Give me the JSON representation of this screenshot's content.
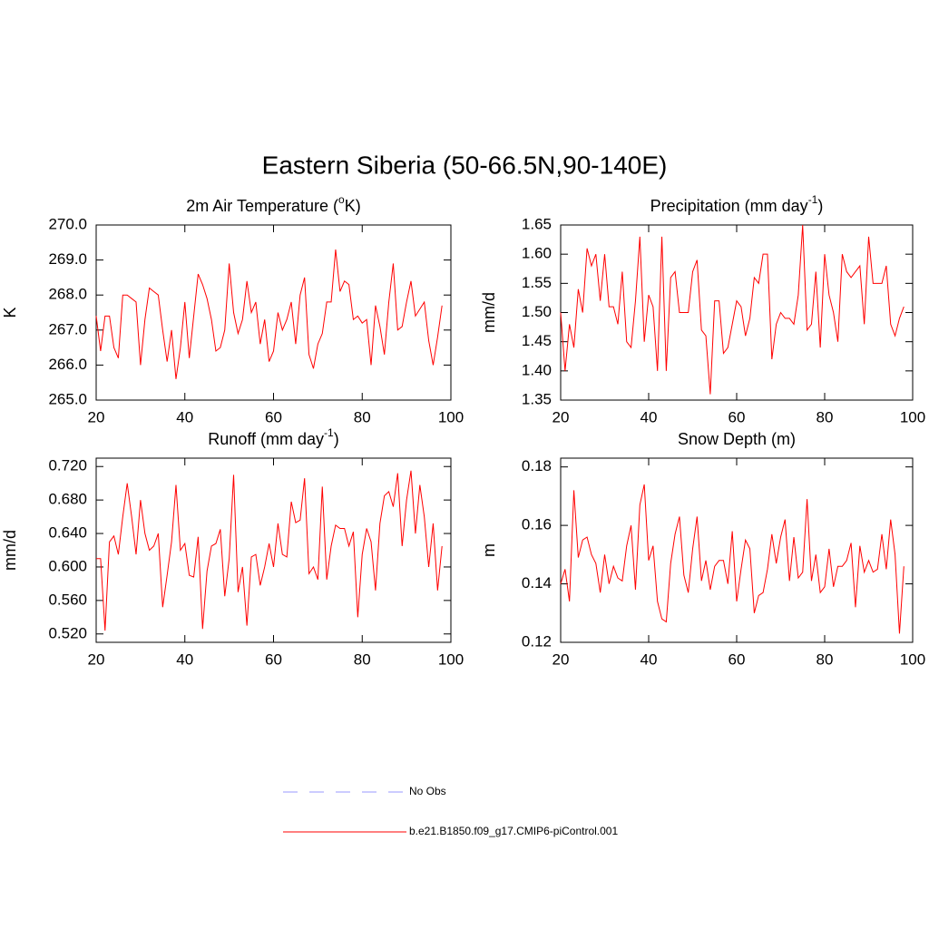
{
  "title": "Eastern Siberia (50-66.5N,90-140E)",
  "legend": [
    {
      "name": "No Obs",
      "color": "#9999ff",
      "dashed": true
    },
    {
      "name": "b.e21.B1850.f09_g17.CMIP6-piControl.001",
      "color": "#ff0000",
      "dashed": false
    }
  ],
  "chart_data": [
    {
      "type": "line",
      "title": [
        "2m Air Temperature (",
        "o",
        "K)"
      ],
      "y_label": "K",
      "color": "#ff0000",
      "x": [
        20,
        21,
        22,
        23,
        24,
        25,
        26,
        27,
        28,
        29,
        30,
        31,
        32,
        33,
        34,
        35,
        36,
        37,
        38,
        39,
        40,
        41,
        42,
        43,
        44,
        45,
        46,
        47,
        48,
        49,
        50,
        51,
        52,
        53,
        54,
        55,
        56,
        57,
        58,
        59,
        60,
        61,
        62,
        63,
        64,
        65,
        66,
        67,
        68,
        69,
        70,
        71,
        72,
        73,
        74,
        75,
        76,
        77,
        78,
        79,
        80,
        81,
        82,
        83,
        84,
        85,
        86,
        87,
        88,
        89,
        90,
        91,
        92,
        93,
        94,
        95,
        96,
        97,
        98
      ],
      "values": [
        267.4,
        266.4,
        267.4,
        267.4,
        266.5,
        266.2,
        268.0,
        268.0,
        267.9,
        267.8,
        266.0,
        267.3,
        268.2,
        268.1,
        268.0,
        267.0,
        266.1,
        267.0,
        265.6,
        266.5,
        267.8,
        266.2,
        267.4,
        268.6,
        268.3,
        267.9,
        267.3,
        266.4,
        266.5,
        267.0,
        268.9,
        267.5,
        266.9,
        267.3,
        268.4,
        267.5,
        267.8,
        266.6,
        267.3,
        266.1,
        266.4,
        267.5,
        267.0,
        267.3,
        267.8,
        266.6,
        268.0,
        268.5,
        266.3,
        265.9,
        266.6,
        266.9,
        267.8,
        267.8,
        269.3,
        268.1,
        268.4,
        268.3,
        267.3,
        267.4,
        267.2,
        267.3,
        266.0,
        267.7,
        267.1,
        266.3,
        267.8,
        268.9,
        267.0,
        267.1,
        267.8,
        268.4,
        267.4,
        267.6,
        267.8,
        266.7,
        266.0,
        266.8,
        267.7
      ],
      "xlim": [
        20,
        100
      ],
      "xticks": [
        20,
        40,
        60,
        80,
        100
      ],
      "ylim": [
        265,
        270
      ],
      "yticks": [
        {
          "value": 265,
          "label": "265.0"
        },
        {
          "value": 266,
          "label": "266.0"
        },
        {
          "value": 267,
          "label": "267.0"
        },
        {
          "value": 268,
          "label": "268.0"
        },
        {
          "value": 269,
          "label": "269.0"
        },
        {
          "value": 270,
          "label": "270.0"
        }
      ]
    },
    {
      "type": "line",
      "title": [
        "Precipitation (mm day",
        "-1",
        ")"
      ],
      "y_label": "mm/d",
      "color": "#ff0000",
      "x": [
        20,
        21,
        22,
        23,
        24,
        25,
        26,
        27,
        28,
        29,
        30,
        31,
        32,
        33,
        34,
        35,
        36,
        37,
        38,
        39,
        40,
        41,
        42,
        43,
        44,
        45,
        46,
        47,
        48,
        49,
        50,
        51,
        52,
        53,
        54,
        55,
        56,
        57,
        58,
        59,
        60,
        61,
        62,
        63,
        64,
        65,
        66,
        67,
        68,
        69,
        70,
        71,
        72,
        73,
        74,
        75,
        76,
        77,
        78,
        79,
        80,
        81,
        82,
        83,
        84,
        85,
        86,
        87,
        88,
        89,
        90,
        91,
        92,
        93,
        94,
        95,
        96,
        97,
        98
      ],
      "values": [
        1.5,
        1.4,
        1.48,
        1.44,
        1.54,
        1.5,
        1.61,
        1.58,
        1.6,
        1.52,
        1.6,
        1.51,
        1.51,
        1.48,
        1.57,
        1.45,
        1.44,
        1.52,
        1.63,
        1.45,
        1.53,
        1.51,
        1.4,
        1.63,
        1.4,
        1.56,
        1.57,
        1.5,
        1.5,
        1.5,
        1.57,
        1.59,
        1.47,
        1.46,
        1.36,
        1.52,
        1.52,
        1.43,
        1.44,
        1.48,
        1.52,
        1.51,
        1.46,
        1.49,
        1.56,
        1.55,
        1.6,
        1.6,
        1.42,
        1.48,
        1.5,
        1.49,
        1.49,
        1.48,
        1.53,
        1.65,
        1.47,
        1.48,
        1.57,
        1.44,
        1.6,
        1.53,
        1.5,
        1.45,
        1.6,
        1.57,
        1.56,
        1.57,
        1.58,
        1.48,
        1.63,
        1.55,
        1.55,
        1.55,
        1.58,
        1.48,
        1.46,
        1.49,
        1.51
      ],
      "xlim": [
        20,
        100
      ],
      "xticks": [
        20,
        40,
        60,
        80,
        100
      ],
      "ylim": [
        1.35,
        1.65
      ],
      "yticks": [
        1.35,
        {
          "value": 1.4,
          "label": "1.40"
        },
        1.45,
        {
          "value": 1.5,
          "label": "1.50"
        },
        1.55,
        {
          "value": 1.6,
          "label": "1.60"
        },
        1.65
      ]
    },
    {
      "type": "line",
      "title": [
        "Runoff (mm day",
        "-1",
        ")"
      ],
      "y_label": "mm/d",
      "color": "#ff0000",
      "x": [
        20,
        21,
        22,
        23,
        24,
        25,
        26,
        27,
        28,
        29,
        30,
        31,
        32,
        33,
        34,
        35,
        36,
        37,
        38,
        39,
        40,
        41,
        42,
        43,
        44,
        45,
        46,
        47,
        48,
        49,
        50,
        51,
        52,
        53,
        54,
        55,
        56,
        57,
        58,
        59,
        60,
        61,
        62,
        63,
        64,
        65,
        66,
        67,
        68,
        69,
        70,
        71,
        72,
        73,
        74,
        75,
        76,
        77,
        78,
        79,
        80,
        81,
        82,
        83,
        84,
        85,
        86,
        87,
        88,
        89,
        90,
        91,
        92,
        93,
        94,
        95,
        96,
        97,
        98
      ],
      "values": [
        0.61,
        0.61,
        0.524,
        0.63,
        0.637,
        0.615,
        0.66,
        0.7,
        0.66,
        0.615,
        0.68,
        0.64,
        0.62,
        0.625,
        0.64,
        0.552,
        0.59,
        0.63,
        0.698,
        0.62,
        0.628,
        0.59,
        0.588,
        0.636,
        0.526,
        0.595,
        0.625,
        0.628,
        0.645,
        0.565,
        0.61,
        0.71,
        0.57,
        0.6,
        0.53,
        0.612,
        0.615,
        0.578,
        0.6,
        0.628,
        0.6,
        0.652,
        0.615,
        0.612,
        0.678,
        0.653,
        0.656,
        0.706,
        0.592,
        0.6,
        0.585,
        0.696,
        0.585,
        0.625,
        0.65,
        0.646,
        0.646,
        0.625,
        0.642,
        0.54,
        0.615,
        0.646,
        0.63,
        0.572,
        0.652,
        0.685,
        0.69,
        0.672,
        0.712,
        0.625,
        0.68,
        0.715,
        0.64,
        0.698,
        0.66,
        0.6,
        0.652,
        0.572,
        0.625
      ],
      "xlim": [
        20,
        100
      ],
      "xticks": [
        20,
        40,
        60,
        80,
        100
      ],
      "ylim": [
        0.51,
        0.73
      ],
      "yticks": [
        {
          "value": 0.52,
          "label": "0.520"
        },
        {
          "value": 0.56,
          "label": "0.560"
        },
        {
          "value": 0.6,
          "label": "0.600"
        },
        {
          "value": 0.64,
          "label": "0.640"
        },
        {
          "value": 0.68,
          "label": "0.680"
        },
        {
          "value": 0.72,
          "label": "0.720"
        }
      ]
    },
    {
      "type": "line",
      "title": [
        "Snow Depth (m)"
      ],
      "y_label": "m",
      "color": "#ff0000",
      "x": [
        20,
        21,
        22,
        23,
        24,
        25,
        26,
        27,
        28,
        29,
        30,
        31,
        32,
        33,
        34,
        35,
        36,
        37,
        38,
        39,
        40,
        41,
        42,
        43,
        44,
        45,
        46,
        47,
        48,
        49,
        50,
        51,
        52,
        53,
        54,
        55,
        56,
        57,
        58,
        59,
        60,
        61,
        62,
        63,
        64,
        65,
        66,
        67,
        68,
        69,
        70,
        71,
        72,
        73,
        74,
        75,
        76,
        77,
        78,
        79,
        80,
        81,
        82,
        83,
        84,
        85,
        86,
        87,
        88,
        89,
        90,
        91,
        92,
        93,
        94,
        95,
        96,
        97,
        98
      ],
      "values": [
        0.14,
        0.145,
        0.134,
        0.172,
        0.149,
        0.155,
        0.156,
        0.15,
        0.147,
        0.137,
        0.15,
        0.14,
        0.146,
        0.142,
        0.141,
        0.153,
        0.16,
        0.138,
        0.167,
        0.174,
        0.148,
        0.153,
        0.134,
        0.128,
        0.127,
        0.147,
        0.157,
        0.163,
        0.143,
        0.137,
        0.152,
        0.163,
        0.141,
        0.148,
        0.138,
        0.146,
        0.148,
        0.148,
        0.14,
        0.158,
        0.134,
        0.145,
        0.155,
        0.152,
        0.13,
        0.136,
        0.137,
        0.145,
        0.157,
        0.147,
        0.156,
        0.162,
        0.141,
        0.156,
        0.142,
        0.144,
        0.169,
        0.141,
        0.15,
        0.137,
        0.139,
        0.152,
        0.139,
        0.146,
        0.146,
        0.148,
        0.154,
        0.132,
        0.153,
        0.144,
        0.148,
        0.144,
        0.145,
        0.157,
        0.145,
        0.162,
        0.15,
        0.123,
        0.146
      ],
      "xlim": [
        20,
        100
      ],
      "xticks": [
        20,
        40,
        60,
        80,
        100
      ],
      "ylim": [
        0.12,
        0.183
      ],
      "yticks": [
        0.12,
        0.14,
        0.16,
        0.18
      ]
    }
  ]
}
